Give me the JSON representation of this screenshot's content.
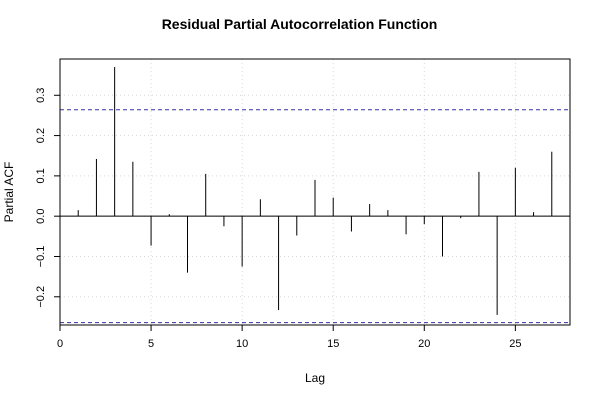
{
  "chart_data": {
    "type": "bar",
    "title": "Residual Partial Autocorrelation Function",
    "xlabel": "Lag",
    "ylabel": "Partial ACF",
    "xlim": [
      0,
      28
    ],
    "ylim": [
      -0.27,
      0.39
    ],
    "x_ticks": [
      0,
      5,
      10,
      15,
      20,
      25
    ],
    "y_ticks": [
      -0.2,
      -0.1,
      0.0,
      0.1,
      0.2,
      0.3
    ],
    "y_tick_labels": [
      "−0.2",
      "−0.1",
      "0.0",
      "0.1",
      "0.2",
      "0.3"
    ],
    "grid": true,
    "confidence_bounds": [
      0.264,
      -0.264
    ],
    "bound_color": "#3333aa",
    "lags": [
      1,
      2,
      3,
      4,
      5,
      6,
      7,
      8,
      9,
      10,
      11,
      12,
      13,
      14,
      15,
      16,
      17,
      18,
      19,
      20,
      21,
      22,
      23,
      24,
      25,
      26,
      27
    ],
    "values": [
      0.015,
      0.142,
      0.37,
      0.135,
      -0.073,
      0.005,
      -0.14,
      0.105,
      -0.025,
      -0.125,
      0.042,
      -0.233,
      -0.048,
      0.09,
      0.046,
      -0.038,
      0.03,
      0.015,
      -0.045,
      -0.02,
      -0.1,
      -0.005,
      0.11,
      -0.245,
      0.12,
      0.01,
      0.16
    ]
  }
}
